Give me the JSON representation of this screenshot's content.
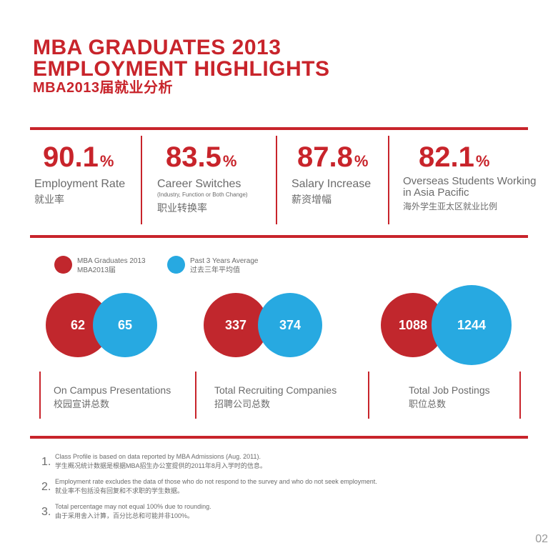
{
  "title": {
    "line1": "MBA GRADUATES 2013",
    "line2": "EMPLOYMENT HIGHLIGHTS",
    "line3": "MBA2013届就业分析"
  },
  "stats": [
    {
      "value": "90.1",
      "unit": "%",
      "label_en": "Employment Rate",
      "label_sub": "",
      "label_zh": "就业率"
    },
    {
      "value": "83.5",
      "unit": "%",
      "label_en": "Career Switches",
      "label_sub": "(Industry, Function or Both Change)",
      "label_zh": "职业转换率"
    },
    {
      "value": "87.8",
      "unit": "%",
      "label_en": "Salary Increase",
      "label_sub": "",
      "label_zh": "薪资增幅"
    },
    {
      "value": "82.1",
      "unit": "%",
      "label_en": "Overseas Students Working in Asia Pacific",
      "label_en_1": "Overseas Students Working",
      "label_en_2": "in Asia Pacific",
      "label_sub": "",
      "label_zh": "海外学生亚太区就业比例"
    }
  ],
  "legend": {
    "series_a": {
      "en": "MBA Graduates 2013",
      "zh": "MBA2013届",
      "color": "#c1272d"
    },
    "series_b": {
      "en": "Past 3 Years Average",
      "zh": "过去三年平均值",
      "color": "#27a9e1"
    }
  },
  "metrics": [
    {
      "value_2013": "62",
      "value_avg": "65",
      "label_en": "On Campus Presentations",
      "label_zh": "校园宣讲总数"
    },
    {
      "value_2013": "337",
      "value_avg": "374",
      "label_en": "Total Recruiting Companies",
      "label_zh": "招聘公司总数"
    },
    {
      "value_2013": "1088",
      "value_avg": "1244",
      "label_en": "Total Job Postings",
      "label_zh": "职位总数"
    }
  ],
  "notes": [
    {
      "num": "1.",
      "en": "Class Profile is based on data reported by MBA Admissions (Aug. 2011).",
      "zh": "学生概况统计数据是根据MBA招生办公室提供的2011年8月入学时的信息。"
    },
    {
      "num": "2.",
      "en": "Employment rate excludes the data of those who do not respond to the survey and who do not seek employment.",
      "zh": "就业率不包括没有回复和不求职的学生数据。"
    },
    {
      "num": "3.",
      "en": "Total percentage may not equal 100% due to rounding.",
      "zh": "由于采用舍入计算，百分比总和可能并非100%。"
    }
  ],
  "page_number": "02",
  "colors": {
    "accent_red": "#c8242b",
    "accent_blue": "#27a9e1",
    "text_gray": "#6b6b6b"
  }
}
